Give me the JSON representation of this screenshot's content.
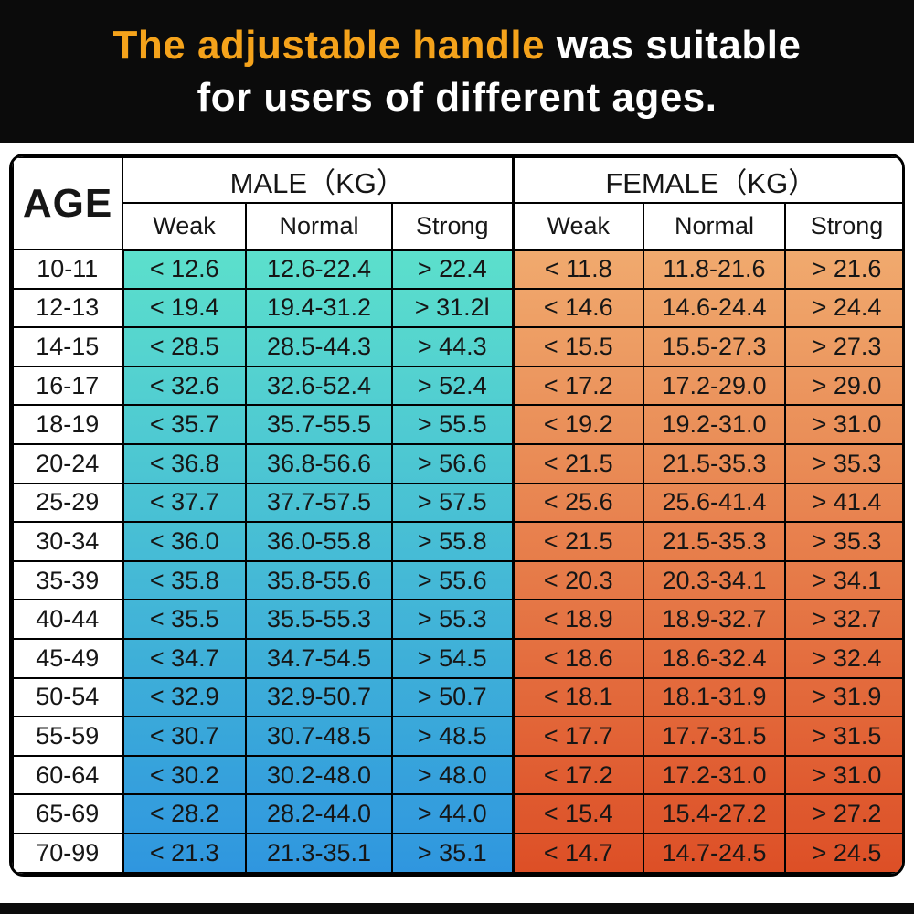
{
  "banner": {
    "highlight": "The adjustable handle",
    "rest": " was suitable",
    "line2": "for users of different ages.",
    "highlight_color": "#f5a31b",
    "text_color": "#ffffff",
    "bg_color": "#0b0b0b"
  },
  "table": {
    "age_header": "AGE",
    "groups": [
      {
        "label": "MALE（KG）",
        "subheaders": [
          "Weak",
          "Normal",
          "Strong"
        ]
      },
      {
        "label": "FEMALE（KG）",
        "subheaders": [
          "Weak",
          "Normal",
          "Strong"
        ]
      }
    ],
    "gradients": {
      "male": {
        "top": "#5ce0cc",
        "bottom": "#2f96df"
      },
      "female": {
        "top": "#f0aa6e",
        "bottom": "#dd4f26"
      }
    },
    "age_column_bg": "#ffffff",
    "border_color": "#000000",
    "text_color": "#161616"
  },
  "chart_data": {
    "type": "table",
    "title": "The adjustable handle was suitable for users of different ages.",
    "columns": [
      "AGE",
      "MALE Weak (KG)",
      "MALE Normal (KG)",
      "MALE Strong (KG)",
      "FEMALE Weak (KG)",
      "FEMALE Normal (KG)",
      "FEMALE Strong (KG)"
    ],
    "rows": [
      [
        "10-11",
        "< 12.6",
        "12.6-22.4",
        "> 22.4",
        "< 11.8",
        "11.8-21.6",
        "> 21.6"
      ],
      [
        "12-13",
        "< 19.4",
        "19.4-31.2",
        "> 31.2l",
        "< 14.6",
        "14.6-24.4",
        "> 24.4"
      ],
      [
        "14-15",
        "< 28.5",
        "28.5-44.3",
        "> 44.3",
        "< 15.5",
        "15.5-27.3",
        "> 27.3"
      ],
      [
        "16-17",
        "< 32.6",
        "32.6-52.4",
        "> 52.4",
        "< 17.2",
        "17.2-29.0",
        "> 29.0"
      ],
      [
        "18-19",
        "< 35.7",
        "35.7-55.5",
        "> 55.5",
        "< 19.2",
        "19.2-31.0",
        "> 31.0"
      ],
      [
        "20-24",
        "< 36.8",
        "36.8-56.6",
        "> 56.6",
        "< 21.5",
        "21.5-35.3",
        "> 35.3"
      ],
      [
        "25-29",
        "< 37.7",
        "37.7-57.5",
        "> 57.5",
        "< 25.6",
        "25.6-41.4",
        "> 41.4"
      ],
      [
        "30-34",
        "< 36.0",
        "36.0-55.8",
        "> 55.8",
        "< 21.5",
        "21.5-35.3",
        "> 35.3"
      ],
      [
        "35-39",
        "< 35.8",
        "35.8-55.6",
        "> 55.6",
        "< 20.3",
        "20.3-34.1",
        "> 34.1"
      ],
      [
        "40-44",
        "< 35.5",
        "35.5-55.3",
        "> 55.3",
        "< 18.9",
        "18.9-32.7",
        "> 32.7"
      ],
      [
        "45-49",
        "< 34.7",
        "34.7-54.5",
        "> 54.5",
        "< 18.6",
        "18.6-32.4",
        "> 32.4"
      ],
      [
        "50-54",
        "< 32.9",
        "32.9-50.7",
        "> 50.7",
        "< 18.1",
        "18.1-31.9",
        "> 31.9"
      ],
      [
        "55-59",
        "< 30.7",
        "30.7-48.5",
        "> 48.5",
        "< 17.7",
        "17.7-31.5",
        "> 31.5"
      ],
      [
        "60-64",
        "< 30.2",
        "30.2-48.0",
        "> 48.0",
        "< 17.2",
        "17.2-31.0",
        "> 31.0"
      ],
      [
        "65-69",
        "< 28.2",
        "28.2-44.0",
        "> 44.0",
        "< 15.4",
        "15.4-27.2",
        "> 27.2"
      ],
      [
        "70-99",
        "< 21.3",
        "21.3-35.1",
        "> 35.1",
        "< 14.7",
        "14.7-24.5",
        "> 24.5"
      ]
    ]
  }
}
